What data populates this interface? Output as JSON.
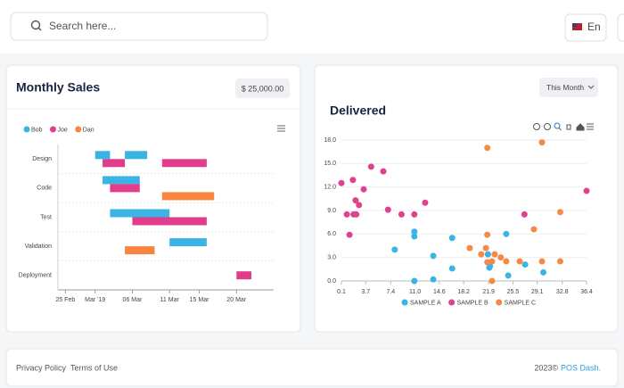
{
  "header": {
    "search_placeholder": "Search here...",
    "language": "En"
  },
  "cards": [
    {
      "title": "Monthly Sales",
      "badge": "$ 25,000.00"
    },
    {
      "title": "Delivered",
      "filter": "This Month"
    }
  ],
  "chart_data": [
    {
      "type": "rangebar",
      "categories": [
        "Design",
        "Code",
        "Test",
        "Validation",
        "Deployment"
      ],
      "series": [
        {
          "name": "Bob",
          "color": "#3ab4e4",
          "values": [
            [
              [
                "2019-03-01",
                "2019-03-03"
              ],
              [
                "2019-03-05",
                "2019-03-08"
              ]
            ],
            [
              [
                "2019-03-02",
                "2019-03-07"
              ]
            ],
            [
              [
                "2019-03-03",
                "2019-03-11"
              ]
            ],
            [
              [
                "2019-03-11",
                "2019-03-16"
              ]
            ],
            []
          ]
        },
        {
          "name": "Joe",
          "color": "#e23d8c",
          "values": [
            [
              [
                "2019-03-02",
                "2019-03-05"
              ],
              [
                "2019-03-10",
                "2019-03-16"
              ]
            ],
            [
              [
                "2019-03-03",
                "2019-03-07"
              ]
            ],
            [
              [
                "2019-03-06",
                "2019-03-16"
              ]
            ],
            [],
            [
              [
                "2019-03-20",
                "2019-03-22"
              ]
            ]
          ]
        },
        {
          "name": "Dan",
          "color": "#f7843f",
          "values": [
            [],
            [
              [
                "2019-03-10",
                "2019-03-17"
              ]
            ],
            [],
            [
              [
                "2019-03-05",
                "2019-03-09"
              ]
            ],
            []
          ]
        }
      ],
      "xlim": [
        "2019-02-24",
        "2019-03-25"
      ],
      "xticks": [
        {
          "value": "2019-02-25",
          "label": "25 Feb"
        },
        {
          "value": "2019-03-01",
          "label": "Mar '19"
        },
        {
          "value": "2019-03-06",
          "label": "06 Mar"
        },
        {
          "value": "2019-03-11",
          "label": "11 Mar"
        },
        {
          "value": "2019-03-15",
          "label": "15 Mar"
        },
        {
          "value": "2019-03-20",
          "label": "20 Mar"
        }
      ],
      "grid": true,
      "legend": "top-left"
    },
    {
      "type": "scatter",
      "series": [
        {
          "name": "SAMPLE A",
          "color": "#39b4e4",
          "x": [
            8.0,
            10.9,
            10.9,
            10.9,
            13.7,
            13.7,
            16.5,
            16.5,
            22.0,
            22.1,
            21.8,
            24.5,
            24.8,
            27.3,
            30.0
          ],
          "values": [
            4.0,
            5.7,
            6.3,
            0,
            3.2,
            0.2,
            5.5,
            1.6,
            1.7,
            1.9,
            3.4,
            6.0,
            0.7,
            2.1,
            1.1
          ]
        },
        {
          "name": "SAMPLE B",
          "color": "#e0408e",
          "x": [
            0.1,
            0.9,
            1.3,
            1.8,
            1.9,
            2.2,
            2.3,
            2.7,
            3.4,
            4.5,
            6.3,
            7.0,
            9.0,
            10.9,
            12.5,
            27.2,
            36.4
          ],
          "values": [
            12.5,
            8.5,
            5.9,
            12.9,
            8.5,
            10.3,
            8.5,
            9.7,
            11.7,
            14.6,
            14.0,
            9.1,
            8.5,
            8.5,
            10.0,
            8.5,
            11.5
          ]
        },
        {
          "name": "SAMPLE C",
          "color": "#f58a48",
          "x": [
            19.1,
            20.8,
            21.5,
            21.7,
            21.7,
            22.4,
            21.7,
            22.8,
            23.7,
            24.5,
            26.5,
            28.6,
            29.8,
            29.8,
            32.5,
            32.5,
            22.4
          ],
          "values": [
            4.2,
            3.4,
            4.2,
            5.9,
            2.4,
            2.5,
            17.0,
            3.4,
            3.0,
            2.5,
            2.5,
            6.6,
            17.7,
            2.5,
            2.5,
            8.8,
            0
          ]
        }
      ],
      "xlim": [
        0.1,
        36.4
      ],
      "xticks": [
        0.1,
        3.7,
        7.4,
        {
          "value": 11,
          "label": "11.0"
        },
        14.6,
        18.2,
        21.9,
        25.5,
        29.1,
        32.8,
        36.4
      ],
      "ylim": [
        0,
        18
      ],
      "yticks": [
        {
          "value": 0,
          "label": "0.0"
        },
        {
          "value": 3,
          "label": "3.0"
        },
        {
          "value": 6,
          "label": "6.0"
        },
        {
          "value": 9,
          "label": "9.0"
        },
        {
          "value": 12,
          "label": "12.0"
        },
        {
          "value": 15,
          "label": "15.0"
        },
        {
          "value": 18,
          "label": "18.0"
        }
      ],
      "grid": true,
      "legend": "bottom"
    }
  ],
  "footer": {
    "links": [
      "Privacy Policy",
      "Terms of Use"
    ],
    "copyright": "2023©",
    "brand": "POS Dash."
  }
}
